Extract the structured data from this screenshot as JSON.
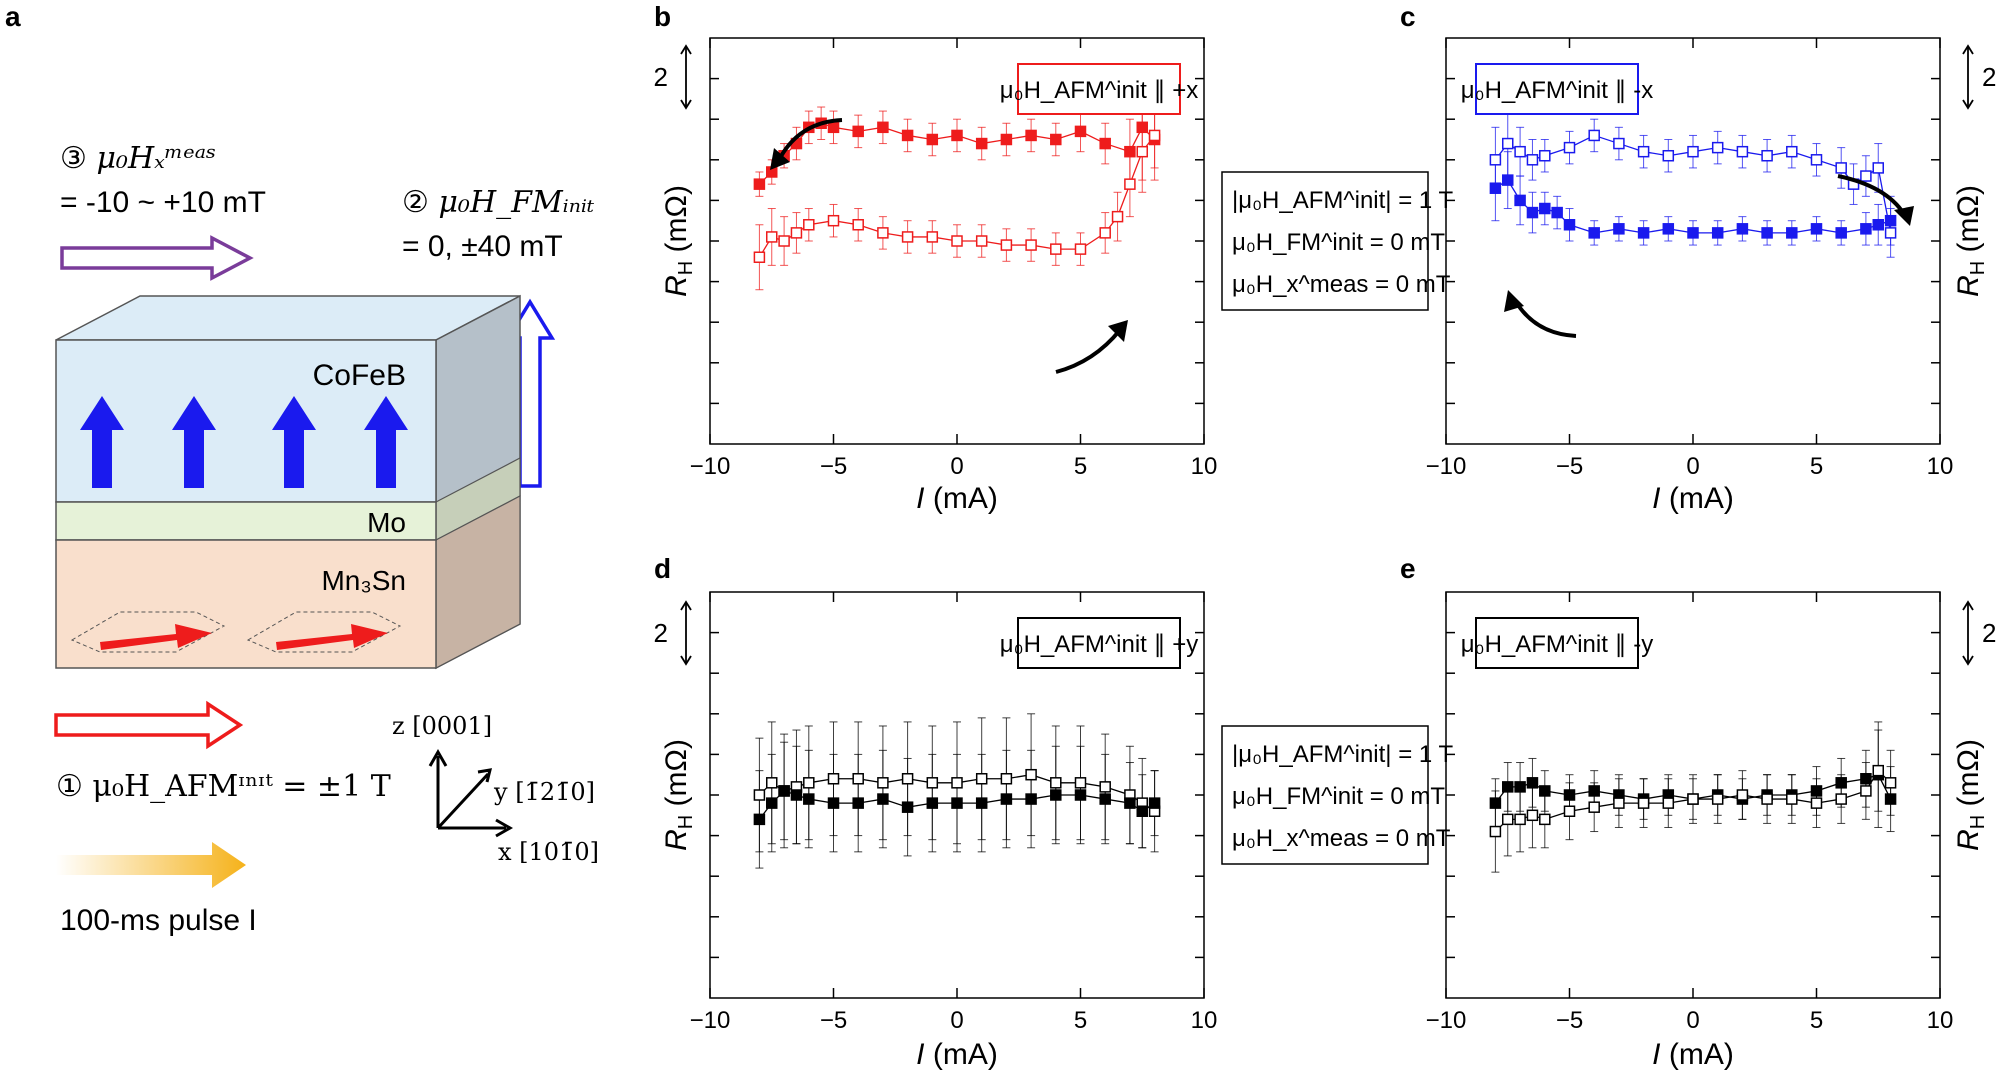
{
  "panel_labels": {
    "a": "a",
    "b": "b",
    "c": "c",
    "d": "d",
    "e": "e"
  },
  "colors": {
    "red": "#ee1c1c",
    "blue": "#1a1aee",
    "black": "#000000",
    "purple": "#7a3c9a",
    "orange": "#f5b21a",
    "cofeb": "#dcecf7",
    "mo": "#e6f2d8",
    "mn3sn": "#f9dfcc"
  },
  "schematic": {
    "step3_prefix": "③ ",
    "step3_field": "μ₀Hₓᵐᵉᵃˢ",
    "step3_range": "= -10 ~ +10 mT",
    "step2_prefix": "② ",
    "step2_field": "μ₀H_FMᵢₙᵢₜ",
    "step2_range": "= 0, ±40 mT",
    "step1_text": "① μ₀H_AFMᶦⁿᶦᵗ = ±1 T",
    "pulse_text": "100-ms pulse I",
    "layer_top": "CoFeB",
    "layer_mid": "Mo",
    "layer_bottom": "Mn₃Sn",
    "axis_z": "z [0001]",
    "axis_y": "y [1̄21̄0]",
    "axis_x": "x [101̄0]"
  },
  "shared_legend": {
    "line1": "|μ₀H_AFM^init| = 1 T",
    "line2": "μ₀H_FM^init = 0 mT",
    "line3": "μ₀H_x^meas = 0 mT"
  },
  "chart_data": [
    {
      "panel": "b",
      "type": "scatter",
      "xlabel": "I (mA)",
      "ylabel": "R_H (mΩ)",
      "xlim": [
        -10,
        10
      ],
      "xticks": [
        -10,
        -5,
        0,
        5,
        10
      ],
      "ylim": [
        -4,
        6
      ],
      "scale_bar_label": "2",
      "scale_bar_mΩ": 2,
      "legend": "μ₀H_AFM^init ∥ +x",
      "legend_color": "#ee1c1c",
      "series": [
        {
          "name": "filled",
          "fill": true,
          "color": "#ee1c1c",
          "x": [
            -8,
            -7.5,
            -7,
            -6.5,
            -6,
            -5.5,
            -5,
            -4,
            -3,
            -2,
            -1,
            0,
            1,
            2,
            3,
            4,
            5,
            6,
            7,
            7.5,
            8
          ],
          "y": [
            2.4,
            2.7,
            3.1,
            3.4,
            3.8,
            3.9,
            3.8,
            3.7,
            3.8,
            3.6,
            3.5,
            3.6,
            3.4,
            3.5,
            3.6,
            3.5,
            3.7,
            3.4,
            3.2,
            3.8,
            3.5
          ],
          "err": [
            0.3,
            0.3,
            0.3,
            0.4,
            0.4,
            0.4,
            0.4,
            0.4,
            0.4,
            0.4,
            0.4,
            0.4,
            0.4,
            0.4,
            0.4,
            0.4,
            0.5,
            0.5,
            0.8,
            1.3,
            1.0
          ]
        },
        {
          "name": "open",
          "fill": false,
          "color": "#ee1c1c",
          "x": [
            -8,
            -7.5,
            -7,
            -6.5,
            -6,
            -5,
            -4,
            -3,
            -2,
            -1,
            0,
            1,
            2,
            3,
            4,
            5,
            6,
            6.5,
            7,
            7.5,
            8
          ],
          "y": [
            0.6,
            1.1,
            1.0,
            1.2,
            1.4,
            1.5,
            1.4,
            1.2,
            1.1,
            1.1,
            1.0,
            1.0,
            0.9,
            0.9,
            0.8,
            0.8,
            1.2,
            1.6,
            2.4,
            3.2,
            3.6
          ],
          "err": [
            0.8,
            0.7,
            0.6,
            0.5,
            0.4,
            0.4,
            0.4,
            0.4,
            0.4,
            0.4,
            0.4,
            0.4,
            0.4,
            0.4,
            0.4,
            0.4,
            0.5,
            0.6,
            0.8,
            1.0,
            0.8
          ]
        }
      ]
    },
    {
      "panel": "c",
      "type": "scatter",
      "xlabel": "I (mA)",
      "ylabel": "R_H (mΩ)",
      "xlim": [
        -10,
        10
      ],
      "xticks": [
        -10,
        -5,
        0,
        5,
        10
      ],
      "ylim": [
        -4,
        6
      ],
      "scale_bar_label": "2",
      "scale_bar_mΩ": 2,
      "legend": "μ₀H_AFM^init ∥ -x",
      "legend_color": "#1a1aee",
      "series": [
        {
          "name": "open",
          "fill": false,
          "color": "#1a1aee",
          "x": [
            -8,
            -7.5,
            -7,
            -6.5,
            -6,
            -5,
            -4,
            -3,
            -2,
            -1,
            0,
            1,
            2,
            3,
            4,
            5,
            6,
            6.5,
            7,
            7.5,
            8
          ],
          "y": [
            3.0,
            3.4,
            3.2,
            3.0,
            3.1,
            3.3,
            3.6,
            3.4,
            3.2,
            3.1,
            3.2,
            3.3,
            3.2,
            3.1,
            3.2,
            3.0,
            2.8,
            2.4,
            2.6,
            2.8,
            1.2
          ],
          "err": [
            0.8,
            0.8,
            0.6,
            0.5,
            0.4,
            0.4,
            0.4,
            0.4,
            0.4,
            0.4,
            0.4,
            0.4,
            0.4,
            0.4,
            0.4,
            0.4,
            0.5,
            0.5,
            0.5,
            0.6,
            0.6
          ]
        },
        {
          "name": "filled",
          "fill": true,
          "color": "#1a1aee",
          "x": [
            -8,
            -7.5,
            -7,
            -6.5,
            -6,
            -5.5,
            -5,
            -4,
            -3,
            -2,
            -1,
            0,
            1,
            2,
            3,
            4,
            5,
            6,
            7,
            7.5,
            8
          ],
          "y": [
            2.3,
            2.5,
            2.0,
            1.7,
            1.8,
            1.7,
            1.4,
            1.2,
            1.3,
            1.2,
            1.3,
            1.2,
            1.2,
            1.3,
            1.2,
            1.2,
            1.3,
            1.2,
            1.3,
            1.4,
            1.5
          ],
          "err": [
            0.8,
            0.7,
            0.6,
            0.5,
            0.4,
            0.4,
            0.4,
            0.3,
            0.3,
            0.3,
            0.3,
            0.3,
            0.3,
            0.3,
            0.3,
            0.3,
            0.3,
            0.3,
            0.4,
            0.5,
            0.6
          ]
        }
      ]
    },
    {
      "panel": "d",
      "type": "scatter",
      "xlabel": "I (mA)",
      "ylabel": "R_H (mΩ)",
      "xlim": [
        -10,
        10
      ],
      "xticks": [
        -10,
        -5,
        0,
        5,
        10
      ],
      "ylim": [
        -4,
        6
      ],
      "scale_bar_label": "2",
      "scale_bar_mΩ": 2,
      "legend": "μ₀H_AFM^init ∥ +y",
      "legend_color": "#000000",
      "series": [
        {
          "name": "open",
          "fill": false,
          "color": "#000000",
          "x": [
            -8,
            -7.5,
            -7,
            -6.5,
            -6,
            -5,
            -4,
            -3,
            -2,
            -1,
            0,
            1,
            2,
            3,
            4,
            5,
            6,
            7,
            7.5,
            8
          ],
          "y": [
            1.0,
            1.3,
            1.1,
            1.2,
            1.3,
            1.4,
            1.4,
            1.3,
            1.4,
            1.3,
            1.3,
            1.4,
            1.4,
            1.5,
            1.3,
            1.3,
            1.2,
            1.0,
            0.8,
            0.6
          ],
          "err": [
            1.4,
            1.5,
            1.4,
            1.4,
            1.4,
            1.4,
            1.4,
            1.4,
            1.4,
            1.4,
            1.5,
            1.5,
            1.5,
            1.5,
            1.4,
            1.4,
            1.3,
            1.2,
            1.1,
            1.0
          ]
        },
        {
          "name": "filled",
          "fill": true,
          "color": "#000000",
          "x": [
            -8,
            -7.5,
            -7,
            -6.5,
            -6,
            -5,
            -4,
            -3,
            -2,
            -1,
            0,
            1,
            2,
            3,
            4,
            5,
            6,
            7,
            7.5,
            8
          ],
          "y": [
            0.4,
            0.8,
            1.1,
            1.0,
            0.9,
            0.8,
            0.8,
            0.9,
            0.7,
            0.8,
            0.8,
            0.8,
            0.9,
            0.9,
            1.0,
            1.0,
            0.9,
            0.8,
            0.6,
            0.8
          ],
          "err": [
            1.2,
            1.2,
            1.2,
            1.2,
            1.2,
            1.2,
            1.2,
            1.2,
            1.2,
            1.2,
            1.2,
            1.2,
            1.2,
            1.2,
            1.2,
            1.2,
            1.1,
            1.0,
            0.9,
            0.8
          ]
        }
      ]
    },
    {
      "panel": "e",
      "type": "scatter",
      "xlabel": "I (mA)",
      "ylabel": "R_H (mΩ)",
      "xlim": [
        -10,
        10
      ],
      "xticks": [
        -10,
        -5,
        0,
        5,
        10
      ],
      "ylim": [
        -4,
        6
      ],
      "scale_bar_label": "2",
      "scale_bar_mΩ": 2,
      "legend": "μ₀H_AFM^init ∥ -y",
      "legend_color": "#000000",
      "series": [
        {
          "name": "filled",
          "fill": true,
          "color": "#000000",
          "x": [
            -8,
            -7.5,
            -7,
            -6.5,
            -6,
            -5,
            -4,
            -3,
            -2,
            -1,
            0,
            1,
            2,
            3,
            4,
            5,
            6,
            7,
            7.5,
            8
          ],
          "y": [
            0.8,
            1.2,
            1.2,
            1.3,
            1.1,
            1.0,
            1.1,
            1.0,
            0.9,
            1.0,
            0.9,
            1.0,
            0.9,
            1.0,
            1.0,
            1.1,
            1.3,
            1.4,
            1.5,
            0.9
          ],
          "err": [
            0.6,
            0.6,
            0.6,
            0.6,
            0.5,
            0.5,
            0.5,
            0.5,
            0.5,
            0.5,
            0.5,
            0.5,
            0.5,
            0.5,
            0.5,
            0.6,
            0.6,
            0.7,
            1.3,
            0.8
          ]
        },
        {
          "name": "open",
          "fill": false,
          "color": "#000000",
          "x": [
            -8,
            -7.5,
            -7,
            -6.5,
            -6,
            -5,
            -4,
            -3,
            -2,
            -1,
            0,
            1,
            2,
            3,
            4,
            5,
            6,
            7,
            7.5,
            8
          ],
          "y": [
            0.1,
            0.4,
            0.4,
            0.5,
            0.4,
            0.6,
            0.7,
            0.8,
            0.8,
            0.8,
            0.9,
            0.9,
            1.0,
            0.9,
            0.9,
            0.8,
            0.9,
            1.1,
            1.6,
            1.3
          ],
          "err": [
            1.0,
            0.9,
            0.8,
            0.8,
            0.7,
            0.7,
            0.6,
            0.6,
            0.6,
            0.6,
            0.6,
            0.6,
            0.6,
            0.6,
            0.6,
            0.6,
            0.6,
            0.7,
            1.0,
            0.8
          ]
        }
      ]
    }
  ]
}
